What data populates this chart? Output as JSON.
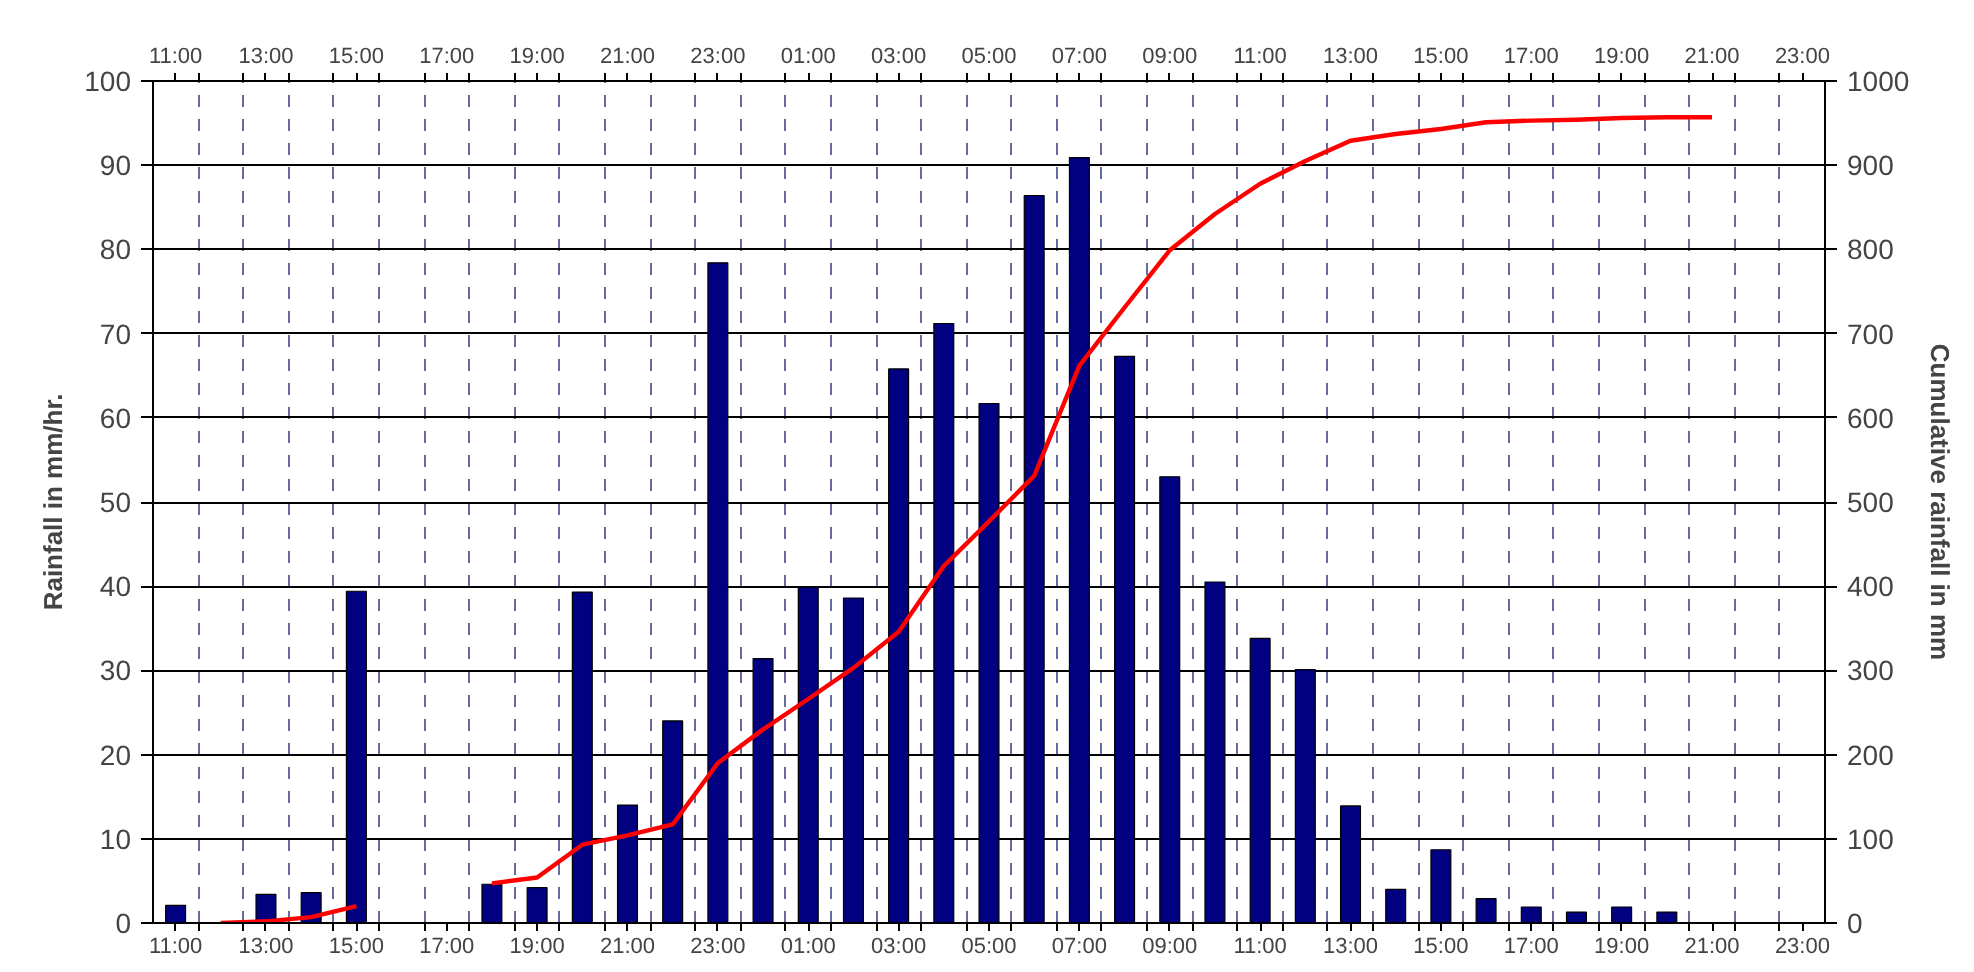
{
  "chart_data": {
    "type": "bar",
    "ylabel": "Rainfall in mm/hr.",
    "y2label": "Cumulative rainfall in mm",
    "categories": [
      "11:00",
      null,
      "13:00",
      null,
      "15:00",
      null,
      "17:00",
      null,
      "19:00",
      null,
      "21:00",
      null,
      "23:00",
      null,
      "01:00",
      null,
      "03:00",
      null,
      "05:00",
      null,
      "07:00",
      null,
      "09:00",
      null,
      "11:00",
      null,
      "13:00",
      null,
      "15:00",
      null,
      "17:00",
      null,
      "19:00",
      null,
      "21:00",
      null,
      "23:00"
    ],
    "ylim": [
      0,
      100
    ],
    "yticks": [
      0,
      10,
      20,
      30,
      40,
      50,
      60,
      70,
      80,
      90,
      100
    ],
    "y2lim": [
      0,
      1000
    ],
    "y2ticks": [
      0,
      100,
      200,
      300,
      400,
      500,
      600,
      700,
      800,
      900,
      1000
    ],
    "grid": true,
    "series": [
      {
        "color": "#000080",
        "values": [
          2.1,
          null,
          3.4,
          3.6,
          39.4,
          null,
          null,
          4.6,
          4.2,
          39.3,
          14.0,
          24.0,
          78.4,
          31.4,
          39.9,
          38.6,
          65.8,
          71.2,
          61.7,
          86.4,
          90.9,
          67.3,
          53.0,
          40.5,
          33.8,
          30.1,
          13.9,
          4.0,
          8.7,
          2.9,
          1.9,
          1.3,
          1.9,
          1.3,
          null,
          null,
          null
        ]
      },
      {
        "type": "line",
        "axis": "y2",
        "color": "#ff0000",
        "values": [
          null,
          0,
          2,
          7,
          20,
          null,
          null,
          47,
          54,
          93,
          104,
          117,
          190,
          230,
          266,
          303,
          346,
          424,
          477,
          531,
          662,
          731,
          799,
          842,
          878,
          905,
          929,
          937,
          943,
          951,
          953,
          954,
          956,
          957,
          957,
          null,
          null
        ]
      }
    ]
  }
}
